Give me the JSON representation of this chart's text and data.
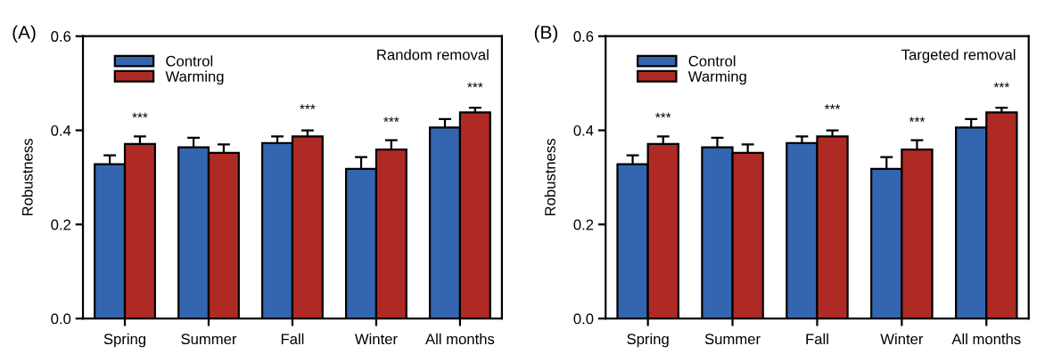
{
  "chart_data": [
    {
      "type": "bar",
      "title": "(A)",
      "subtitle": "Random removal",
      "ylabel": "Robustness",
      "categories": [
        "Spring",
        "Summer",
        "Fall",
        "Winter",
        "All months"
      ],
      "series": [
        {
          "name": "Control",
          "color": "#3465b0",
          "values": [
            0.328,
            0.364,
            0.373,
            0.318,
            0.406
          ],
          "errors": [
            0.019,
            0.02,
            0.014,
            0.025,
            0.018
          ]
        },
        {
          "name": "Warming",
          "color": "#b02a25",
          "values": [
            0.371,
            0.352,
            0.387,
            0.359,
            0.438
          ],
          "errors": [
            0.016,
            0.018,
            0.013,
            0.02,
            0.01
          ]
        }
      ],
      "ylim": [
        0,
        0.6
      ],
      "yticks": [
        {
          "value": 0,
          "label": "0.0"
        },
        {
          "value": 0.2,
          "label": "0.2"
        },
        {
          "value": 0.4,
          "label": "0.4"
        },
        {
          "value": 0.6,
          "label": "0.6"
        }
      ],
      "annotations": [
        "***",
        "***",
        "***",
        "***"
      ],
      "grid": false,
      "legend": "top left"
    },
    {
      "type": "bar",
      "title": "(B)",
      "subtitle": "Targeted removal",
      "ylabel": "Robustness",
      "categories": [
        "Spring",
        "Summer",
        "Fall",
        "Winter",
        "All months"
      ],
      "series": [
        {
          "name": "Control",
          "color": "#3465b0",
          "values": [
            0.328,
            0.364,
            0.373,
            0.318,
            0.406
          ],
          "errors": [
            0.019,
            0.02,
            0.014,
            0.025,
            0.018
          ]
        },
        {
          "name": "Warming",
          "color": "#b02a25",
          "values": [
            0.371,
            0.352,
            0.387,
            0.359,
            0.438
          ],
          "errors": [
            0.016,
            0.018,
            0.013,
            0.02,
            0.01
          ]
        }
      ],
      "ylim": [
        0,
        0.6
      ],
      "yticks": [
        {
          "value": 0,
          "label": "0.0"
        },
        {
          "value": 0.2,
          "label": "0.2"
        },
        {
          "value": 0.4,
          "label": "0.4"
        },
        {
          "value": 0.6,
          "label": "0.6"
        }
      ],
      "annotations": [
        "***",
        "***",
        "***",
        "***"
      ],
      "grid": false,
      "legend": "top left"
    }
  ]
}
